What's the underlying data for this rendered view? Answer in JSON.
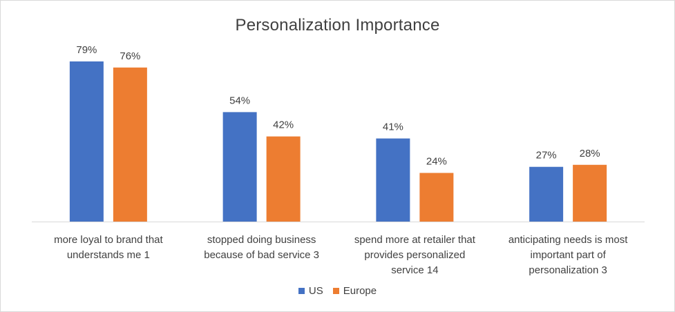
{
  "chart_data": {
    "type": "bar",
    "title": "Personalization Importance",
    "categories": [
      [
        "more loyal to brand that",
        "understands me 1"
      ],
      [
        "stopped doing business",
        "because of bad service 3"
      ],
      [
        "spend more at retailer that",
        "provides personalized",
        "service 14"
      ],
      [
        "anticipating needs is most",
        "important part of",
        "personalization 3"
      ]
    ],
    "series": [
      {
        "name": "US",
        "values": [
          79,
          54,
          41,
          27
        ],
        "labels": [
          "79%",
          "54%",
          "41%",
          "27%"
        ],
        "color": "#4472c4"
      },
      {
        "name": "Europe",
        "values": [
          76,
          42,
          24,
          28
        ],
        "labels": [
          "76%",
          "42%",
          "24%",
          "28%"
        ],
        "color": "#ed7d31"
      }
    ],
    "ylim": [
      0,
      100
    ],
    "grid": false,
    "legend": "bottom"
  }
}
